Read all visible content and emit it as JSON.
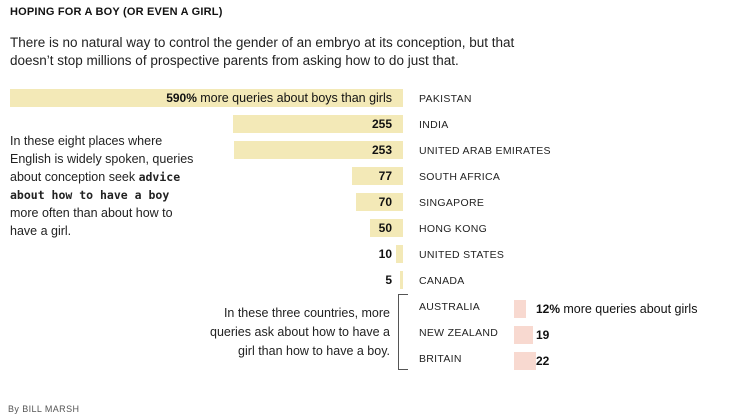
{
  "title": "HOPING FOR A BOY (OR EVEN A GIRL)",
  "intro": "There is no natural way to control the gender of an embryo at its conception, but that doesn’t stop millions of prospective parents from asking how to do just that.",
  "left_note": {
    "part1": "In these eight places where English is widely spoken, queries about conception seek ",
    "bold": "advice about how to have a boy",
    "part2": " more often than about how to have a girl."
  },
  "right_note": "In these three countries, more queries ask about how to have a girl than how to have a boy.",
  "byline": "By BILL MARSH",
  "chart_data": {
    "type": "bar",
    "orientation": "horizontal",
    "series": [
      {
        "name": "more queries about boys than girls",
        "unit": "%",
        "first_label": "590% more queries about boys than girls",
        "categories": [
          "PAKISTAN",
          "INDIA",
          "UNITED ARAB EMIRATES",
          "SOUTH AFRICA",
          "SINGAPORE",
          "HONG KONG",
          "UNITED STATES",
          "CANADA"
        ],
        "values": [
          590,
          255,
          253,
          77,
          70,
          50,
          10,
          5
        ],
        "labels": [
          "590%",
          "255",
          "253",
          "77",
          "70",
          "50",
          "10",
          "5"
        ],
        "color": "#f3e9b7",
        "direction": "leftward"
      },
      {
        "name": "more queries about girls",
        "unit": "%",
        "first_label": "12% more queries about girls",
        "categories": [
          "AUSTRALIA",
          "NEW ZEALAND",
          "BRITAIN"
        ],
        "values": [
          12,
          19,
          22
        ],
        "labels": [
          "12%",
          "19",
          "22"
        ],
        "color": "#f8d9d0",
        "direction": "rightward"
      }
    ]
  }
}
